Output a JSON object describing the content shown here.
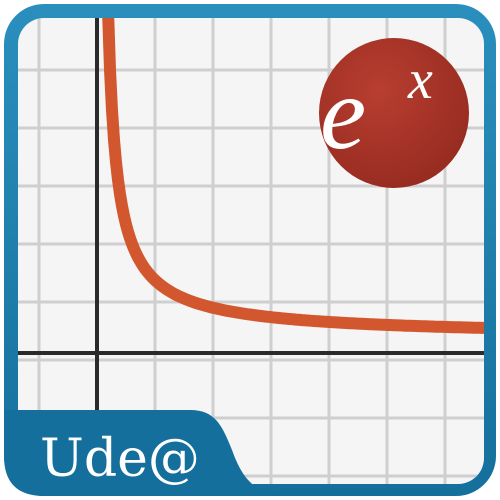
{
  "app_icon": {
    "brand_label": "Ude@",
    "badge": {
      "base": "e",
      "exponent": "x"
    },
    "colors": {
      "frame": "#1a7ba7",
      "frame_dark": "#0f5f86",
      "grid_background": "#f5f5f5",
      "grid_line": "#cfcfcf",
      "axis": "#2a2a2a",
      "curve": "#d2572e",
      "badge": "#a53428",
      "text": "#ffffff"
    }
  }
}
